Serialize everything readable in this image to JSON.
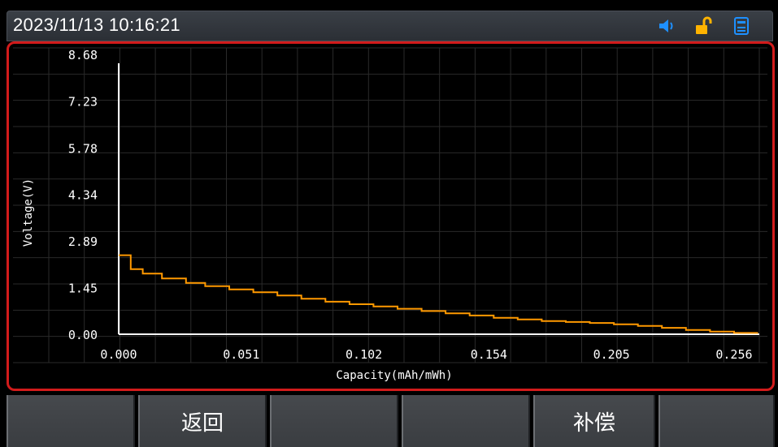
{
  "status_bar": {
    "datetime": "2023/11/13  10:16:21",
    "icons": [
      "speaker-icon",
      "unlock-icon",
      "usb-device-icon"
    ],
    "colors": {
      "speaker": "#1e90ff",
      "unlock": "#ffb300",
      "usb": "#1e90ff"
    }
  },
  "chart_data": {
    "type": "line",
    "xlabel": "Capacity(mAh/mWh)",
    "ylabel": "Voltage(V)",
    "xlim": [
      0.0,
      0.2665
    ],
    "ylim": [
      0.0,
      8.68
    ],
    "x_ticks": [
      "0.000",
      "0.051",
      "0.102",
      "0.154",
      "0.205",
      "0.256"
    ],
    "y_ticks": [
      "0.00",
      "1.45",
      "2.89",
      "4.34",
      "5.78",
      "7.23",
      "8.68"
    ],
    "grid": true,
    "line_color": "#ff9900",
    "series": [
      {
        "x": [
          0.0,
          0.005,
          0.005,
          0.01,
          0.01,
          0.018,
          0.018,
          0.028,
          0.028,
          0.036,
          0.036,
          0.046,
          0.046,
          0.056,
          0.056,
          0.066,
          0.066,
          0.076,
          0.076,
          0.086,
          0.086,
          0.096,
          0.096,
          0.106,
          0.106,
          0.116,
          0.116,
          0.126,
          0.126,
          0.136,
          0.136,
          0.146,
          0.146,
          0.156,
          0.156,
          0.166,
          0.166,
          0.176,
          0.176,
          0.186,
          0.186,
          0.196,
          0.196,
          0.206,
          0.206,
          0.216,
          0.216,
          0.226,
          0.226,
          0.236,
          0.236,
          0.246,
          0.246,
          0.256,
          0.256,
          0.266
        ],
        "y": [
          2.45,
          2.45,
          2.02,
          2.02,
          1.88,
          1.88,
          1.73,
          1.73,
          1.59,
          1.59,
          1.49,
          1.49,
          1.39,
          1.39,
          1.3,
          1.3,
          1.2,
          1.2,
          1.1,
          1.1,
          1.01,
          1.01,
          0.93,
          0.93,
          0.86,
          0.86,
          0.79,
          0.79,
          0.72,
          0.72,
          0.65,
          0.65,
          0.58,
          0.58,
          0.51,
          0.51,
          0.46,
          0.46,
          0.41,
          0.41,
          0.38,
          0.38,
          0.35,
          0.35,
          0.31,
          0.31,
          0.26,
          0.26,
          0.2,
          0.2,
          0.13,
          0.13,
          0.08,
          0.08,
          0.04,
          0.04
        ]
      }
    ]
  },
  "softkeys": [
    "",
    "返回",
    "",
    "",
    "补偿",
    ""
  ]
}
